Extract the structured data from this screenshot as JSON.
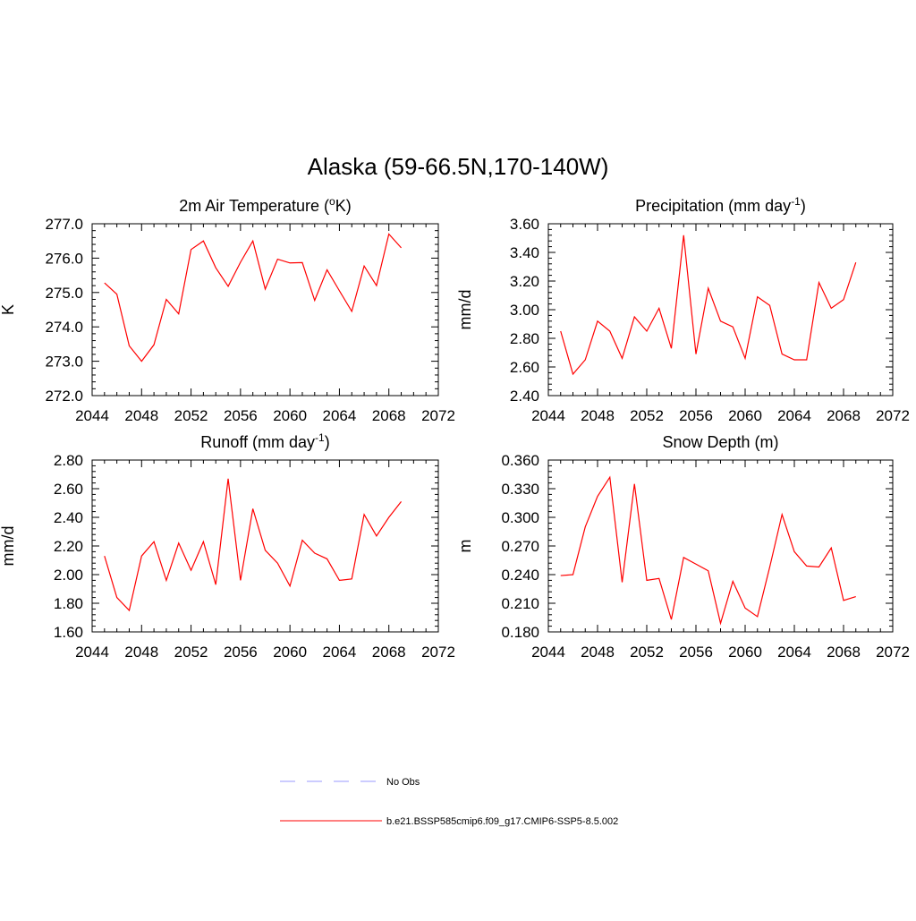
{
  "title": "Alaska (59-66.5N,170-140W)",
  "line_color": "#ff0000",
  "chart_data": [
    {
      "type": "line",
      "title": "2m Air Temperature (",
      "title_sup": "o",
      "title_after": "K)",
      "title_sup2": "",
      "title_end": "",
      "ylabel": "K",
      "xlim": [
        2044,
        2072
      ],
      "ylim": [
        272.0,
        277.0
      ],
      "xticks": [
        "2044",
        "2048",
        "2052",
        "2056",
        "2060",
        "2064",
        "2068",
        "2072"
      ],
      "yticks": [
        "272.0",
        "273.0",
        "274.0",
        "275.0",
        "276.0",
        "277.0"
      ],
      "x": [
        2045,
        2046,
        2047,
        2048,
        2049,
        2050,
        2051,
        2052,
        2053,
        2054,
        2055,
        2056,
        2057,
        2058,
        2059,
        2060,
        2061,
        2062,
        2063,
        2064,
        2065,
        2066,
        2067,
        2068,
        2069
      ],
      "y": [
        275.28,
        274.95,
        273.45,
        273.0,
        273.48,
        274.8,
        274.38,
        276.25,
        276.5,
        275.72,
        275.18,
        275.88,
        276.5,
        275.1,
        275.97,
        275.86,
        275.87,
        274.77,
        275.66,
        275.05,
        274.45,
        275.77,
        275.2,
        276.7,
        276.3
      ]
    },
    {
      "type": "line",
      "title": "Precipitation (mm day",
      "title_sup": "-1",
      "title_after": ")",
      "title_sup2": "",
      "title_end": "",
      "ylabel": "mm/d",
      "xlim": [
        2044,
        2072
      ],
      "ylim": [
        2.4,
        3.6
      ],
      "xticks": [
        "2044",
        "2048",
        "2052",
        "2056",
        "2060",
        "2064",
        "2068",
        "2072"
      ],
      "yticks": [
        "2.40",
        "2.60",
        "2.80",
        "3.00",
        "3.20",
        "3.40",
        "3.60"
      ],
      "x": [
        2045,
        2046,
        2047,
        2048,
        2049,
        2050,
        2051,
        2052,
        2053,
        2054,
        2055,
        2056,
        2057,
        2058,
        2059,
        2060,
        2061,
        2062,
        2063,
        2064,
        2065,
        2066,
        2067,
        2068,
        2069
      ],
      "y": [
        2.85,
        2.55,
        2.65,
        2.92,
        2.85,
        2.66,
        2.95,
        2.85,
        3.01,
        2.73,
        3.52,
        2.69,
        3.15,
        2.92,
        2.88,
        2.66,
        3.09,
        3.03,
        2.69,
        2.65,
        2.65,
        3.19,
        3.01,
        3.07,
        3.33
      ]
    },
    {
      "type": "line",
      "title": "Runoff (mm day",
      "title_sup": "-1",
      "title_after": ")",
      "title_sup2": "",
      "title_end": "",
      "ylabel": "mm/d",
      "xlim": [
        2044,
        2072
      ],
      "ylim": [
        1.6,
        2.8
      ],
      "xticks": [
        "2044",
        "2048",
        "2052",
        "2056",
        "2060",
        "2064",
        "2068",
        "2072"
      ],
      "yticks": [
        "1.60",
        "1.80",
        "2.00",
        "2.20",
        "2.40",
        "2.60",
        "2.80"
      ],
      "x": [
        2045,
        2046,
        2047,
        2048,
        2049,
        2050,
        2051,
        2052,
        2053,
        2054,
        2055,
        2056,
        2057,
        2058,
        2059,
        2060,
        2061,
        2062,
        2063,
        2064,
        2065,
        2066,
        2067,
        2068,
        2069
      ],
      "y": [
        2.13,
        1.84,
        1.75,
        2.13,
        2.23,
        1.96,
        2.22,
        2.03,
        2.23,
        1.93,
        2.67,
        1.96,
        2.46,
        2.17,
        2.08,
        1.92,
        2.24,
        2.15,
        2.11,
        1.96,
        1.97,
        2.42,
        2.27,
        2.4,
        2.51
      ]
    },
    {
      "type": "line",
      "title": "Snow Depth (m)",
      "title_sup": "",
      "title_after": "",
      "title_sup2": "",
      "title_end": "",
      "ylabel": "m",
      "xlim": [
        2044,
        2072
      ],
      "ylim": [
        0.18,
        0.36
      ],
      "xticks": [
        "2044",
        "2048",
        "2052",
        "2056",
        "2060",
        "2064",
        "2068",
        "2072"
      ],
      "yticks": [
        "0.180",
        "0.210",
        "0.240",
        "0.270",
        "0.300",
        "0.330",
        "0.360"
      ],
      "x": [
        2045,
        2046,
        2047,
        2048,
        2049,
        2050,
        2051,
        2052,
        2053,
        2054,
        2055,
        2056,
        2057,
        2058,
        2059,
        2060,
        2061,
        2062,
        2063,
        2064,
        2065,
        2066,
        2067,
        2068,
        2069
      ],
      "y": [
        0.239,
        0.24,
        0.29,
        0.322,
        0.342,
        0.232,
        0.335,
        0.234,
        0.236,
        0.193,
        0.258,
        0.251,
        0.244,
        0.189,
        0.233,
        0.205,
        0.196,
        0.248,
        0.303,
        0.264,
        0.249,
        0.248,
        0.268,
        0.213,
        0.217
      ]
    }
  ],
  "legend": [
    {
      "label": "No Obs",
      "color": "#9999ff",
      "dash": true
    },
    {
      "label": "b.e21.BSSP585cmip6.f09_g17.CMIP6-SSP5-8.5.002",
      "color": "#ff0000",
      "dash": false
    }
  ]
}
